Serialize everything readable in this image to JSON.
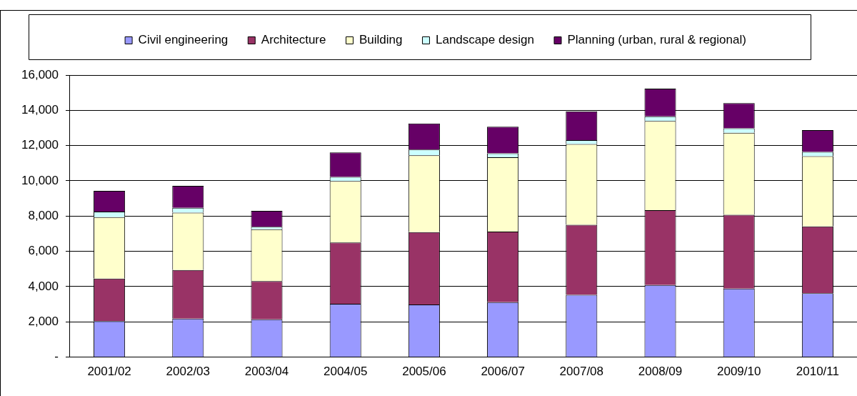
{
  "chart_data": {
    "type": "bar",
    "stacked": true,
    "categories": [
      "2001/02",
      "2002/03",
      "2003/04",
      "2004/05",
      "2005/06",
      "2006/07",
      "2007/08",
      "2008/09",
      "2009/10",
      "2010/11"
    ],
    "series": [
      {
        "name": "Civil engineering",
        "color": "#9999ff",
        "values": [
          2040,
          2180,
          2140,
          3020,
          2980,
          3120,
          3530,
          4090,
          3890,
          3620
        ]
      },
      {
        "name": "Architecture",
        "color": "#993366",
        "values": [
          2410,
          2760,
          2170,
          3480,
          4110,
          4000,
          3980,
          4250,
          4180,
          3790
        ]
      },
      {
        "name": "Building",
        "color": "#ffffcc",
        "values": [
          3490,
          3250,
          2940,
          3490,
          4360,
          4220,
          4580,
          5050,
          4660,
          3990
        ]
      },
      {
        "name": "Landscape design",
        "color": "#ccffff",
        "values": [
          320,
          280,
          140,
          230,
          320,
          220,
          220,
          270,
          250,
          240
        ]
      },
      {
        "name": "Planning (urban, rural & regional)",
        "color": "#660066",
        "values": [
          1170,
          1250,
          910,
          1390,
          1480,
          1510,
          1630,
          1570,
          1430,
          1240
        ]
      }
    ],
    "ylim": [
      0,
      16000
    ],
    "yticks": [
      {
        "value": 0,
        "label": "-"
      },
      {
        "value": 2000,
        "label": "2,000"
      },
      {
        "value": 4000,
        "label": "4,000"
      },
      {
        "value": 6000,
        "label": "6,000"
      },
      {
        "value": 8000,
        "label": "8,000"
      },
      {
        "value": 10000,
        "label": "10,000"
      },
      {
        "value": 12000,
        "label": "12,000"
      },
      {
        "value": 14000,
        "label": "14,000"
      },
      {
        "value": 16000,
        "label": "16,000"
      }
    ],
    "grid": "y",
    "legend": "top"
  }
}
